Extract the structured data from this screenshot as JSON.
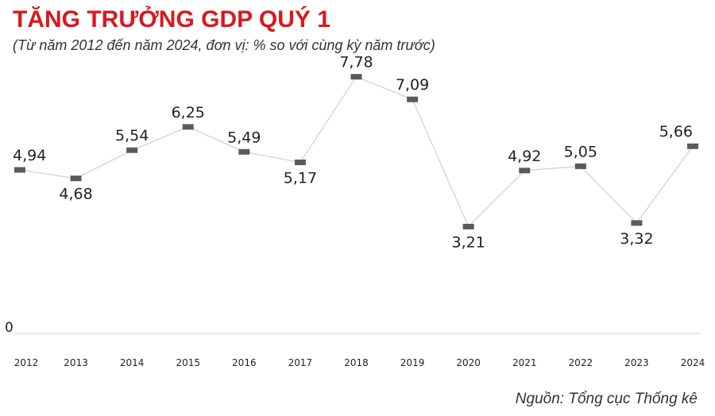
{
  "header": {
    "title": "TĂNG TRƯỞNG GDP QUÝ 1",
    "subtitle": "(Từ năm 2012 đến năm 2024, đơn vị: % so với cùng kỳ năm trước)"
  },
  "footer": {
    "source": "Nguồn: Tổng cục Thống kê"
  },
  "chart_data": {
    "type": "line",
    "title": "TĂNG TRƯỞNG GDP QUÝ 1",
    "subtitle": "(Từ năm 2012 đến năm 2024, đơn vị: % so với cùng kỳ năm trước)",
    "xlabel": "",
    "ylabel": "",
    "categories": [
      "2012",
      "2013",
      "2014",
      "2015",
      "2016",
      "2017",
      "2018",
      "2019",
      "2020",
      "2021",
      "2022",
      "2023",
      "2024"
    ],
    "value_labels": [
      "4,94",
      "4,68",
      "5,54",
      "6,25",
      "5,49",
      "5,17",
      "7,78",
      "7,09",
      "3,21",
      "4,92",
      "5,05",
      "3,32",
      "5,66"
    ],
    "series": [
      {
        "values": [
          4.94,
          4.68,
          5.54,
          6.25,
          5.49,
          5.17,
          7.78,
          7.09,
          3.21,
          4.92,
          5.05,
          3.32,
          5.66
        ]
      }
    ],
    "y_tick_label": "0",
    "ylim": [
      0,
      8.5
    ],
    "grid": false,
    "colors": {
      "line": "#d3d3d3",
      "marker": "#5a5a5a",
      "label": "#222222",
      "highlight": "#d71920",
      "axis": "#cccccc"
    }
  }
}
